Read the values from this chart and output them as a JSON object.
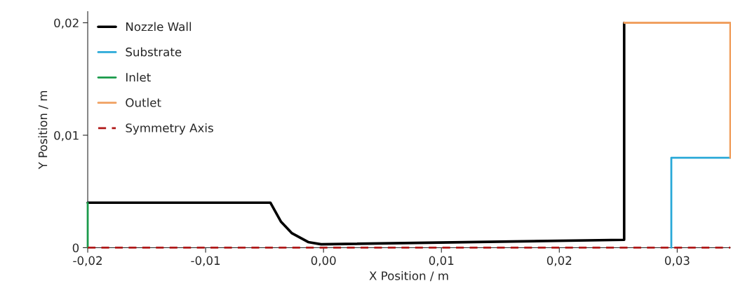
{
  "chart_data": {
    "type": "line",
    "xlabel": "X Position / m",
    "ylabel": "Y Position / m",
    "xlim": [
      -0.02,
      0.0345
    ],
    "ylim": [
      0,
      0.021
    ],
    "xticks": [
      {
        "value": -0.02,
        "label": "-0,02"
      },
      {
        "value": -0.01,
        "label": "-0,01"
      },
      {
        "value": 0.0,
        "label": "0,00"
      },
      {
        "value": 0.01,
        "label": "0,01"
      },
      {
        "value": 0.02,
        "label": "0,02"
      },
      {
        "value": 0.03,
        "label": "0,03"
      }
    ],
    "yticks": [
      {
        "value": 0,
        "label": "0"
      },
      {
        "value": 0.01,
        "label": "0,01"
      },
      {
        "value": 0.02,
        "label": "0,02"
      }
    ],
    "grid": false,
    "legend": "top left",
    "marker": "none",
    "series": [
      {
        "name": "Nozzle Wall",
        "color": "#000000",
        "x": [
          -0.02,
          -0.0045,
          -0.0036,
          -0.0027,
          -0.0013,
          -0.0002,
          0.0255,
          0.0255
        ],
        "values": [
          0.004,
          0.004,
          0.0023,
          0.0013,
          0.0005,
          0.0003,
          0.0007,
          0.02
        ]
      },
      {
        "name": "Substrate",
        "color": "#2aa9d8",
        "x": [
          0.0295,
          0.0295,
          0.0345
        ],
        "values": [
          0,
          0.008,
          0.008
        ]
      },
      {
        "name": "Inlet",
        "color": "#1a9a4a",
        "x": [
          -0.02,
          -0.02
        ],
        "values": [
          0,
          0.004
        ]
      },
      {
        "name": "Outlet",
        "color": "#f0a060",
        "x": [
          0.0255,
          0.0345,
          0.0345
        ],
        "values": [
          0.02,
          0.02,
          0.008
        ]
      },
      {
        "name": "Symmetry Axis",
        "color": "#b01818",
        "line_style": "dashed",
        "x": [
          -0.02,
          0.0345
        ],
        "values": [
          0,
          0
        ]
      }
    ]
  }
}
